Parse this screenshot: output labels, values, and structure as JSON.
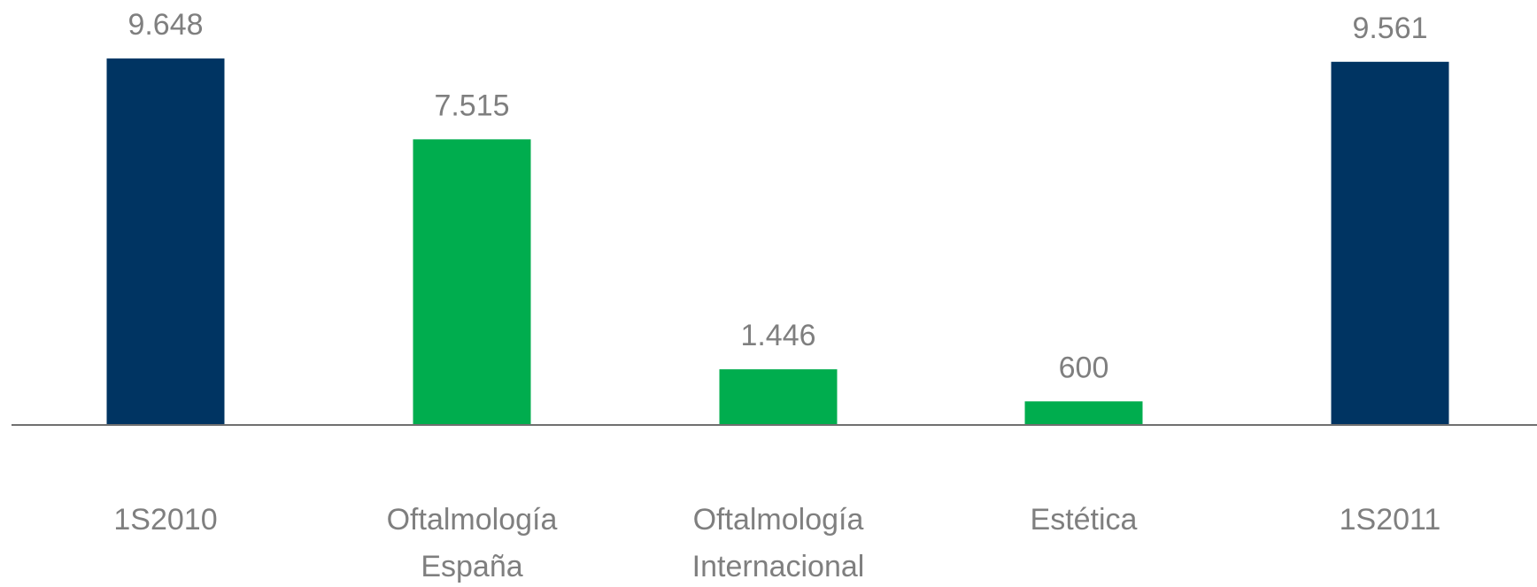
{
  "chart_data": {
    "type": "bar",
    "categories": [
      [
        "1S2010"
      ],
      [
        "Oftalmología",
        "España"
      ],
      [
        "Oftalmología",
        "Internacional"
      ],
      [
        "Estética"
      ],
      [
        "1S2011"
      ]
    ],
    "values": [
      9648,
      7515,
      1446,
      600,
      9561
    ],
    "value_labels": [
      "9.648",
      "7.515",
      "1.446",
      "600",
      "9.561"
    ],
    "colors": [
      "#003462",
      "#00ad4e",
      "#00ad4e",
      "#00ad4e",
      "#003462"
    ],
    "ylim": [
      0,
      10000
    ]
  }
}
